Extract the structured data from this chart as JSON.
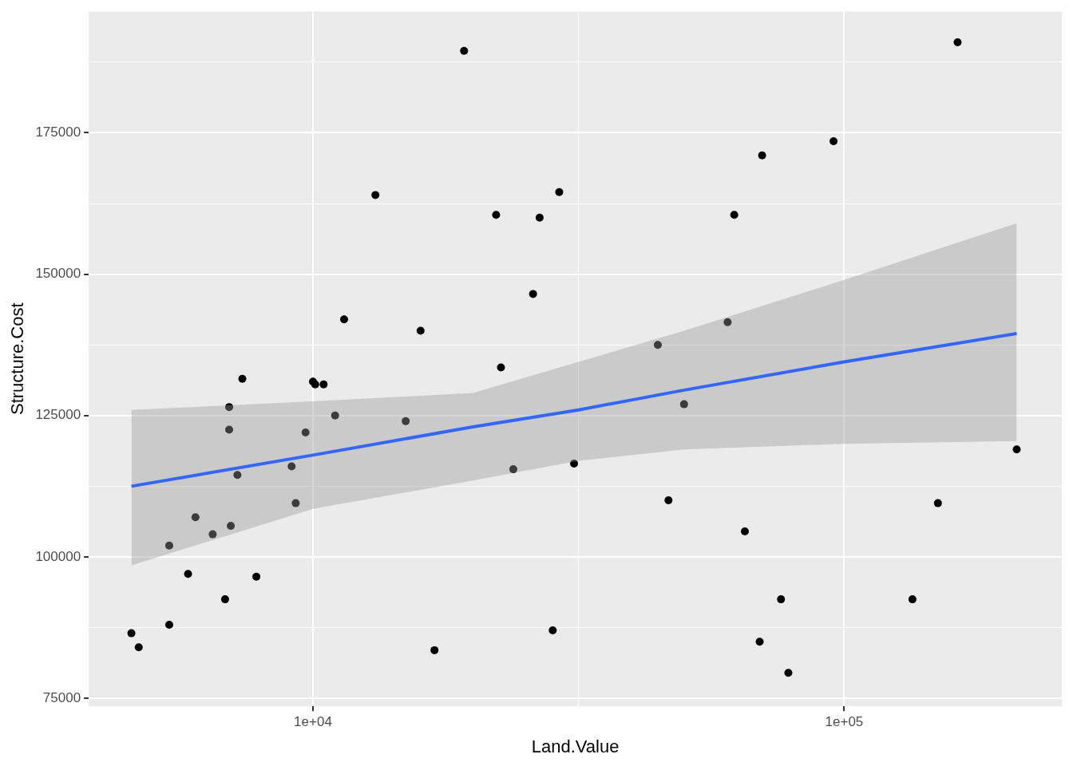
{
  "chart_data": {
    "type": "scatter",
    "xlabel": "Land.Value",
    "ylabel": "Structure.Cost",
    "log": "x",
    "grid": true,
    "legend": false,
    "xlim": [
      3784,
      256800
    ],
    "ylim": [
      73577,
      196480
    ],
    "xticks": [
      {
        "value": 10000,
        "label": "1e+04"
      },
      {
        "value": 31623,
        "label": null
      },
      {
        "value": 100000,
        "label": "1e+05"
      }
    ],
    "yticks": [
      75000,
      {
        "value": 87500,
        "label": null
      },
      100000,
      {
        "value": 112500,
        "label": null
      },
      125000,
      {
        "value": 137500,
        "label": null
      },
      150000,
      {
        "value": 162500,
        "label": null
      },
      175000,
      {
        "value": 187500,
        "label": null
      }
    ],
    "series": [
      {
        "color": "#000000",
        "marker": "circle",
        "x": [
          4553,
          4700,
          5364,
          5364,
          5820,
          6010,
          6476,
          6833,
          6955,
          6955,
          7004,
          7208,
          7364,
          7825,
          9118,
          9280,
          9685,
          10000,
          10100,
          10474,
          11008,
          11447,
          13109,
          14950,
          15944,
          16935,
          19250,
          22120,
          22590,
          23830,
          25960,
          26710,
          28270,
          29080,
          31010,
          44580,
          46690,
          49950,
          60330,
          62090,
          65010,
          69320,
          70060,
          76030,
          78500,
          95480,
          134400,
          150100,
          163460,
          211200
        ],
        "values": [
          86500,
          84000,
          88000,
          102000,
          97000,
          107000,
          104000,
          92500,
          126500,
          122500,
          105500,
          114500,
          131500,
          96500,
          116000,
          109500,
          122000,
          131000,
          130500,
          130500,
          125000,
          142000,
          164000,
          124000,
          140000,
          83500,
          189500,
          160500,
          133500,
          115500,
          146500,
          160000,
          87000,
          164500,
          116500,
          137500,
          110000,
          127000,
          141500,
          160500,
          104500,
          85000,
          171000,
          92500,
          79500,
          173500,
          92500,
          109500,
          191000,
          119000
        ]
      },
      {
        "type": "line",
        "color": "#3366ff",
        "marker": "none",
        "x": [
          4553,
          10000,
          20000,
          31623,
          50000,
          100000,
          211200
        ],
        "values": [
          112500,
          118000,
          123000,
          126000,
          129500,
          134500,
          139500
        ],
        "lower": [
          98500,
          108500,
          113500,
          117000,
          119000,
          120000,
          120500
        ],
        "upper": [
          126000,
          127500,
          129000,
          134500,
          140000,
          149000,
          159000
        ]
      }
    ]
  }
}
